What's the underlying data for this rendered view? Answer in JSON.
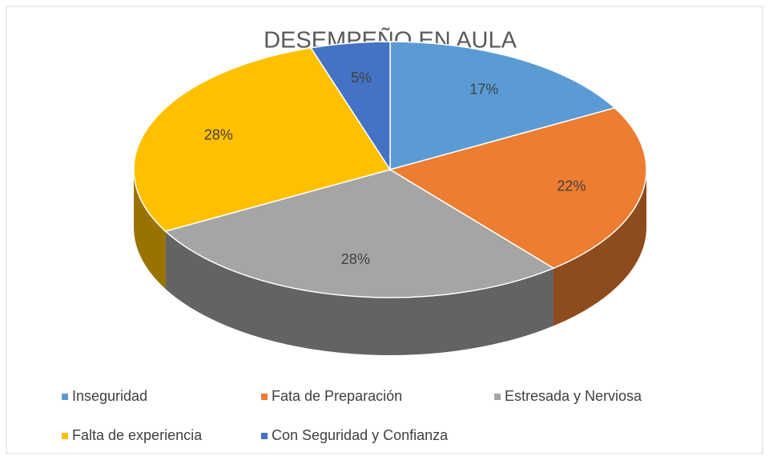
{
  "chart_data": {
    "type": "pie",
    "title": "DESEMPEÑO EN AULA",
    "categories": [
      "Inseguridad",
      "Fata de Preparación",
      "Estresada y Nerviosa",
      "Falta de experiencia",
      "Con Seguridad y Confianza"
    ],
    "values": [
      17,
      22,
      28,
      28,
      5
    ],
    "value_labels": [
      "17%",
      "22%",
      "28%",
      "28%",
      "5%"
    ],
    "colors": [
      "#5b9bd5",
      "#ed7d31",
      "#a5a5a5",
      "#ffc000",
      "#4472c4"
    ],
    "legend": "bottom"
  }
}
